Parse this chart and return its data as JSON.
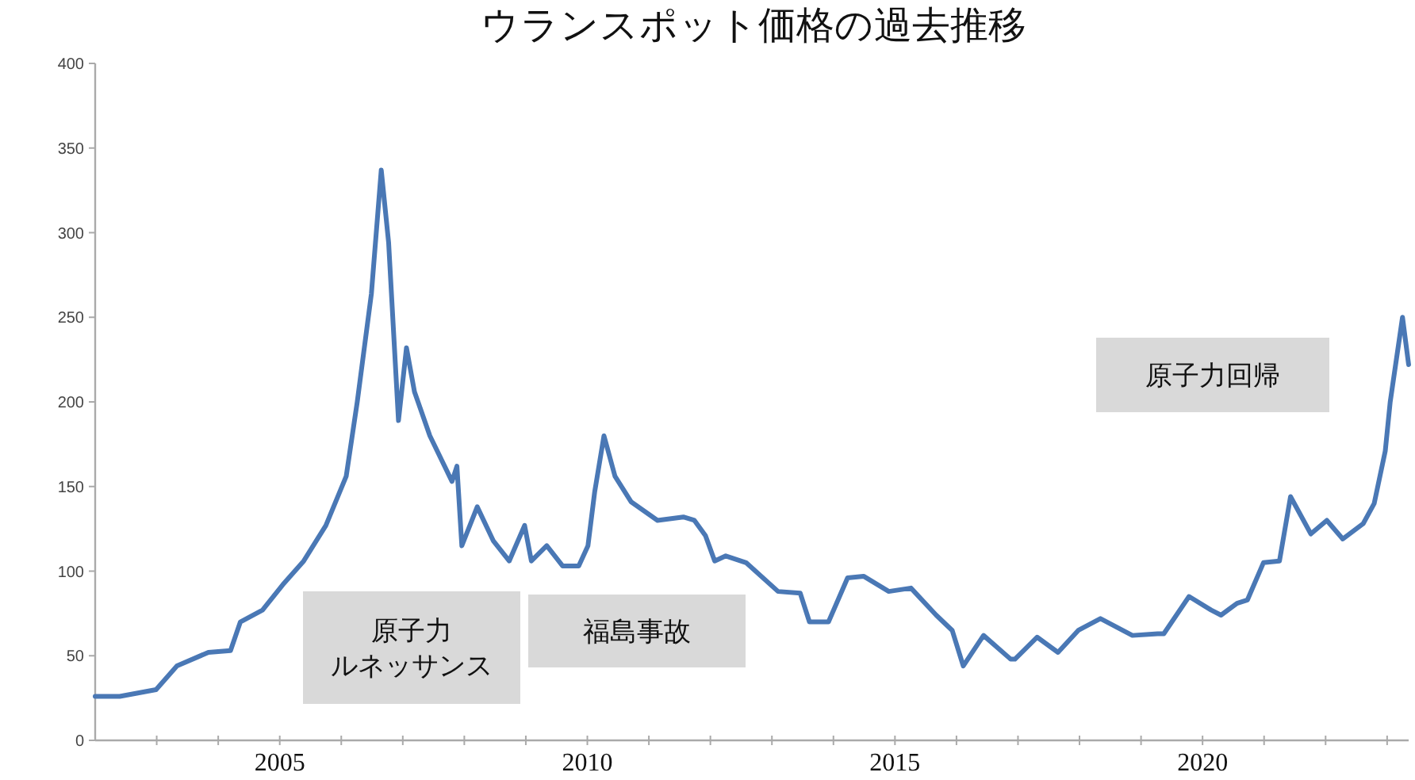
{
  "chart_data": {
    "type": "line",
    "title": "ウランスポット価格の過去推移",
    "annotations": [
      "原子力ルネッサンス",
      "福島事故",
      "原子力回帰"
    ],
    "x": [
      2002.0,
      2002.4,
      2002.99,
      2003.33,
      2003.84,
      2004.2,
      2004.36,
      2004.72,
      2005.05,
      2005.39,
      2005.75,
      2006.08,
      2006.26,
      2006.49,
      2006.65,
      2006.77,
      2006.93,
      2007.06,
      2007.19,
      2007.44,
      2007.8,
      2007.88,
      2007.96,
      2008.21,
      2008.47,
      2008.73,
      2008.98,
      2009.09,
      2009.34,
      2009.6,
      2009.86,
      2010.01,
      2010.12,
      2010.27,
      2010.45,
      2010.71,
      2011.14,
      2011.56,
      2011.74,
      2011.92,
      2012.07,
      2012.25,
      2012.58,
      2013.1,
      2013.46,
      2013.61,
      2013.92,
      2014.23,
      2014.49,
      2014.9,
      2015.26,
      2015.67,
      2015.93,
      2016.11,
      2016.44,
      2016.88,
      2016.95,
      2017.31,
      2017.65,
      2017.98,
      2018.34,
      2018.86,
      2019.27,
      2019.37,
      2019.78,
      2020.14,
      2020.3,
      2020.56,
      2020.73,
      2020.99,
      2021.25,
      2021.43,
      2021.76,
      2022.02,
      2022.28,
      2022.61,
      2022.79,
      2022.97,
      2023.05,
      2023.25,
      2023.35
    ],
    "series": [
      {
        "color": "#4a78b5",
        "values": [
          26,
          26,
          30,
          44,
          52,
          53,
          70,
          77,
          92,
          106,
          127,
          156,
          200,
          264,
          337,
          294,
          189,
          232,
          206,
          180,
          153,
          162,
          115,
          138,
          118,
          106,
          127,
          106,
          115,
          103,
          103,
          115,
          147,
          180,
          156,
          141,
          130,
          132,
          130,
          121,
          106,
          109,
          105,
          88,
          87,
          70,
          70,
          96,
          97,
          88,
          90,
          74,
          65,
          44,
          62,
          48,
          48,
          61,
          52,
          65,
          72,
          62,
          63,
          63,
          85,
          77,
          74,
          81,
          83,
          105,
          106,
          144,
          122,
          130,
          119,
          128,
          140,
          171,
          200,
          250,
          222
        ]
      }
    ],
    "xlim": [
      2002,
      2023.35
    ],
    "xticks": [
      {
        "value": 2003,
        "label": null
      },
      {
        "value": 2004,
        "label": null
      },
      2005,
      {
        "value": 2006,
        "label": null
      },
      {
        "value": 2007,
        "label": null
      },
      {
        "value": 2008,
        "label": null
      },
      {
        "value": 2009,
        "label": null
      },
      2010,
      {
        "value": 2011,
        "label": null
      },
      {
        "value": 2012,
        "label": null
      },
      {
        "value": 2013,
        "label": null
      },
      {
        "value": 2014,
        "label": null
      },
      2015,
      {
        "value": 2016,
        "label": null
      },
      {
        "value": 2017,
        "label": null
      },
      {
        "value": 2018,
        "label": null
      },
      {
        "value": 2019,
        "label": null
      },
      2020,
      {
        "value": 2021,
        "label": null
      },
      {
        "value": 2022,
        "label": null
      },
      {
        "value": 2023,
        "label": null
      }
    ],
    "ylim": [
      0,
      400
    ],
    "yticks": [
      0,
      50,
      100,
      150,
      200,
      250,
      300,
      350,
      400
    ],
    "grid": false,
    "marker": "none",
    "line_style": "solid"
  }
}
